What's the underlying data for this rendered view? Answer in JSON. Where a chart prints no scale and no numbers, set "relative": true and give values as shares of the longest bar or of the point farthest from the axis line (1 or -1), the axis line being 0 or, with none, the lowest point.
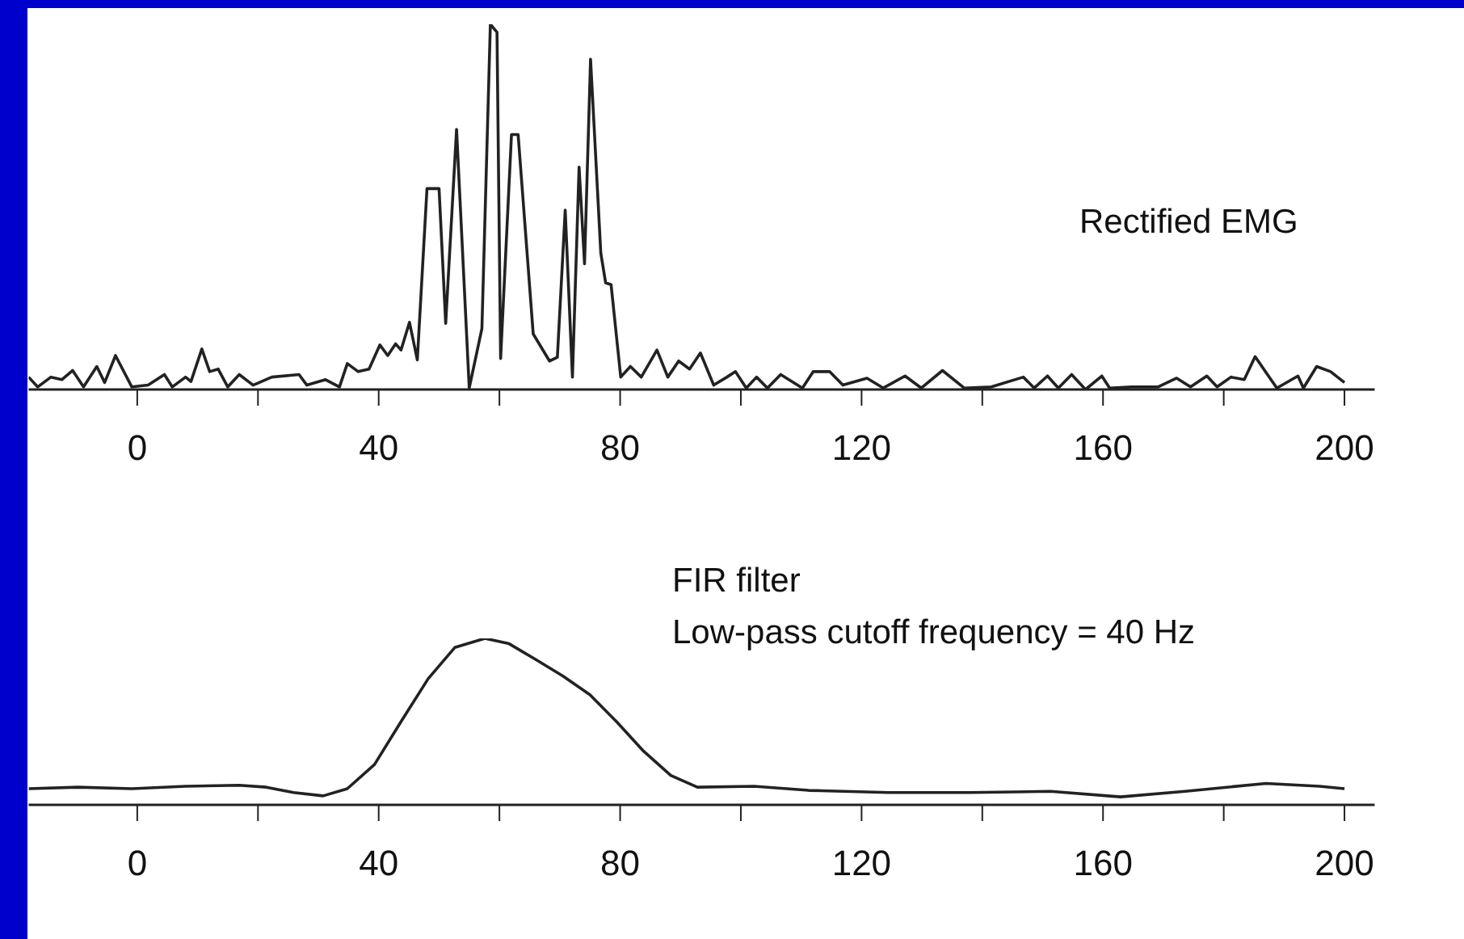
{
  "chart_data": [
    {
      "type": "line",
      "relative": true,
      "annotations": [
        "Rectified EMG"
      ],
      "color": "#222222",
      "marker": "none",
      "xlim": [
        -18,
        205
      ],
      "xticks": [
        0,
        {
          "value": 20,
          "label": null
        },
        40,
        {
          "value": 60,
          "label": null
        },
        80,
        {
          "value": 100,
          "label": null
        },
        120,
        {
          "value": 140,
          "label": null
        },
        160,
        {
          "value": 180,
          "label": null
        },
        200
      ],
      "x": [
        -18,
        -16.5,
        -14.3,
        -12.5,
        -10.7,
        -8.9,
        -6.7,
        -5.4,
        -3.6,
        -0.9,
        1.8,
        4.5,
        5.8,
        8.0,
        8.9,
        10.7,
        12.0,
        13.4,
        15.0,
        16.9,
        19.2,
        22.3,
        26.8,
        28.1,
        31.2,
        33.5,
        34.8,
        36.6,
        38.4,
        40.2,
        41.5,
        42.8,
        43.7,
        45.1,
        46.4,
        48.0,
        50.0,
        51.1,
        52.9,
        55.0,
        57.1,
        58.5,
        59.6,
        60.2,
        62.0,
        63.1,
        65.6,
        68.3,
        69.6,
        70.9,
        72.1,
        73.2,
        74.1,
        75.1,
        76.8,
        77.6,
        78.5,
        80.1,
        81.7,
        83.5,
        86.1,
        87.9,
        89.7,
        91.5,
        93.3,
        95.5,
        97.7,
        99.1,
        100.9,
        102.6,
        104.4,
        106.6,
        110.2,
        112.0,
        114.7,
        116.9,
        120.9,
        123.6,
        127.2,
        129.9,
        133.4,
        137.0,
        141.5,
        146.8,
        148.6,
        150.8,
        152.6,
        154.8,
        157.1,
        159.8,
        161.1,
        164.7,
        169.1,
        172.2,
        174.5,
        177.2,
        178.9,
        181.2,
        183.4,
        185.2,
        186.9,
        188.8,
        192.3,
        193.2,
        195.4,
        197.7,
        200
      ],
      "values": [
        0.034,
        0.007,
        0.034,
        0.027,
        0.052,
        0.007,
        0.063,
        0.019,
        0.093,
        0.007,
        0.012,
        0.041,
        0.007,
        0.034,
        0.022,
        0.111,
        0.049,
        0.056,
        0.007,
        0.041,
        0.012,
        0.034,
        0.041,
        0.012,
        0.027,
        0.007,
        0.071,
        0.049,
        0.056,
        0.122,
        0.093,
        0.125,
        0.108,
        0.184,
        0.081,
        0.55,
        0.55,
        0.181,
        0.712,
        0.004,
        0.167,
        1.0,
        0.978,
        0.085,
        0.698,
        0.698,
        0.152,
        0.078,
        0.088,
        0.491,
        0.034,
        0.609,
        0.344,
        0.904,
        0.373,
        0.292,
        0.287,
        0.034,
        0.063,
        0.034,
        0.108,
        0.034,
        0.078,
        0.056,
        0.1,
        0.012,
        0.034,
        0.049,
        0.004,
        0.034,
        0.004,
        0.041,
        0.004,
        0.049,
        0.049,
        0.012,
        0.031,
        0.004,
        0.037,
        0.004,
        0.052,
        0.004,
        0.007,
        0.034,
        0.004,
        0.037,
        0.004,
        0.041,
        0.0,
        0.037,
        0.004,
        0.007,
        0.007,
        0.031,
        0.007,
        0.037,
        0.007,
        0.034,
        0.027,
        0.09,
        0.049,
        0.004,
        0.037,
        0.004,
        0.063,
        0.049,
        0.019
      ]
    },
    {
      "type": "line",
      "relative": true,
      "annotations": [
        "FIR filter",
        "Low-pass cutoff frequency = 40 Hz"
      ],
      "color": "#222222",
      "marker": "none",
      "xlim": [
        -18,
        205
      ],
      "xticks": [
        0,
        {
          "value": 20,
          "label": null
        },
        40,
        {
          "value": 60,
          "label": null
        },
        80,
        {
          "value": 100,
          "label": null
        },
        120,
        {
          "value": 140,
          "label": null
        },
        160,
        {
          "value": 180,
          "label": null
        },
        200
      ],
      "x": [
        -18,
        -9.8,
        -0.9,
        8.0,
        16.9,
        21.4,
        25.9,
        30.8,
        34.8,
        39.3,
        43.7,
        48.2,
        52.6,
        57.6,
        61.6,
        66.1,
        70.5,
        75.0,
        79.4,
        83.9,
        88.4,
        92.8,
        102.2,
        111.2,
        124.5,
        137.9,
        151.3,
        162.9,
        173.6,
        187.0,
        195.9,
        200
      ],
      "values": [
        0.097,
        0.106,
        0.097,
        0.112,
        0.118,
        0.106,
        0.074,
        0.054,
        0.097,
        0.242,
        0.5,
        0.758,
        0.945,
        1.0,
        0.968,
        0.871,
        0.774,
        0.661,
        0.5,
        0.322,
        0.177,
        0.106,
        0.112,
        0.087,
        0.074,
        0.074,
        0.081,
        0.048,
        0.081,
        0.129,
        0.112,
        0.097
      ]
    }
  ]
}
